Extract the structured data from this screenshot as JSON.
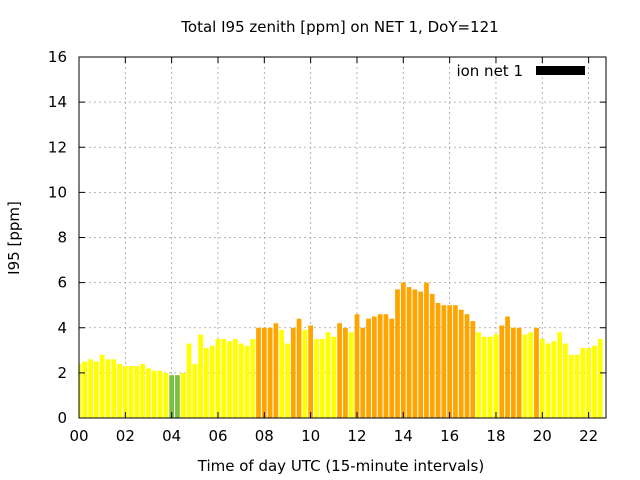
{
  "chart_data": {
    "type": "bar",
    "title": "Total I95 zenith [ppm] on NET 1, DoY=121",
    "xlabel": "Time of day UTC (15-minute intervals)",
    "ylabel": "I95 [ppm]",
    "xlim": [
      0,
      22.75
    ],
    "ylim": [
      0,
      16
    ],
    "xticks": [
      "00",
      "02",
      "04",
      "06",
      "08",
      "10",
      "12",
      "14",
      "16",
      "18",
      "20",
      "22"
    ],
    "yticks": [
      "0",
      "2",
      "4",
      "6",
      "8",
      "10",
      "12",
      "14",
      "16"
    ],
    "grid": true,
    "legend": {
      "label": "ion net 1",
      "color": "#000000",
      "position": "top-right"
    },
    "interval_hours": 0.25,
    "values": [
      2.4,
      2.5,
      2.6,
      2.5,
      2.8,
      2.6,
      2.6,
      2.4,
      2.3,
      2.3,
      2.3,
      2.4,
      2.2,
      2.1,
      2.1,
      2.0,
      1.9,
      1.9,
      2.0,
      3.3,
      2.4,
      3.7,
      3.1,
      3.2,
      3.5,
      3.5,
      3.4,
      3.5,
      3.3,
      3.2,
      3.5,
      4.0,
      4.0,
      4.0,
      4.2,
      3.9,
      3.3,
      4.0,
      4.4,
      3.9,
      4.1,
      3.5,
      3.5,
      3.8,
      3.6,
      4.2,
      4.0,
      3.8,
      4.6,
      4.0,
      4.4,
      4.5,
      4.6,
      4.6,
      4.4,
      5.7,
      6.0,
      5.8,
      5.7,
      5.6,
      6.0,
      5.5,
      5.1,
      5.0,
      5.0,
      5.0,
      4.8,
      4.6,
      4.3,
      3.8,
      3.6,
      3.6,
      3.7,
      4.1,
      4.5,
      4.0,
      4.0,
      3.7,
      3.8,
      4.0,
      3.5,
      3.3,
      3.4,
      3.8,
      3.3,
      2.8,
      2.8,
      3.1,
      3.1,
      3.2,
      3.5
    ],
    "colors": {
      "lt2": "#7ac143",
      "lt4": "#ffff00",
      "ge4": "#ffa500"
    }
  }
}
